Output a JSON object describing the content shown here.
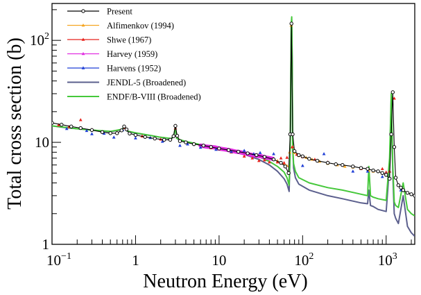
{
  "chart_data": {
    "type": "line",
    "xlabel": "Neutron Energy (eV)",
    "ylabel": "Total cross section (b)",
    "xscale": "log",
    "yscale": "log",
    "xlim": [
      0.1,
      2200
    ],
    "ylim": [
      1,
      230
    ],
    "grid": false,
    "legend_position": "top-left",
    "x_ticks": [
      {
        "value": 0.1,
        "base": "10",
        "exp": "−1"
      },
      {
        "value": 1,
        "label": "1"
      },
      {
        "value": 10,
        "label": "10"
      },
      {
        "value": 100,
        "base": "10",
        "exp": "2"
      },
      {
        "value": 1000,
        "base": "10",
        "exp": "3"
      }
    ],
    "y_ticks": [
      {
        "value": 1,
        "label": "1"
      },
      {
        "value": 10,
        "label": "10"
      },
      {
        "value": 100,
        "base": "10",
        "exp": "2"
      }
    ],
    "series": [
      {
        "name": "Present",
        "color": "#000000",
        "kind": "points-line",
        "marker": "circle",
        "x": [
          0.1,
          0.13,
          0.17,
          0.22,
          0.3,
          0.4,
          0.5,
          0.6,
          0.68,
          0.73,
          0.78,
          0.85,
          1.0,
          1.3,
          1.7,
          2.2,
          2.6,
          2.85,
          3.0,
          3.15,
          3.4,
          4.0,
          5.0,
          6.5,
          8.0,
          10,
          13,
          17,
          22,
          28,
          35,
          45,
          55,
          62,
          68,
          71,
          73.5,
          76,
          80,
          90,
          100,
          120,
          150,
          200,
          250,
          300,
          400,
          500,
          600,
          700,
          800,
          900,
          1000,
          1100,
          1150,
          1200,
          1250,
          1300,
          1400,
          1500,
          1600,
          1800,
          2000,
          2200
        ],
        "y": [
          15.5,
          14.9,
          14.3,
          13.8,
          13.2,
          12.6,
          12.3,
          12.3,
          13.1,
          14.3,
          13.4,
          12.2,
          11.8,
          11.3,
          10.9,
          10.6,
          10.6,
          11.5,
          14.5,
          11.6,
          10.3,
          10.0,
          9.6,
          9.3,
          9.0,
          8.7,
          8.4,
          8.1,
          7.8,
          7.5,
          7.2,
          6.8,
          6.3,
          5.8,
          5.0,
          12,
          146,
          12,
          8.2,
          7.5,
          7.3,
          6.9,
          6.6,
          6.3,
          6.1,
          6.0,
          5.8,
          5.6,
          5.5,
          5.3,
          5.2,
          5.0,
          4.8,
          4.4,
          12,
          31,
          9,
          4.5,
          3.8,
          3.6,
          3.4,
          3.2,
          3.1,
          3.0
        ]
      },
      {
        "name": "Alfimenkov (1994)",
        "color": "#f5a623",
        "kind": "points",
        "marker": "triangle",
        "x": [
          50,
          60,
          65,
          70,
          73,
          76,
          80,
          90,
          110,
          130,
          160,
          200,
          260,
          320,
          400,
          500,
          620,
          700
        ],
        "y": [
          6.6,
          6.2,
          5.9,
          8,
          140,
          9,
          7.9,
          7.4,
          7.1,
          6.8,
          6.5,
          6.2,
          6.0,
          5.8,
          5.7,
          5.5,
          5.3,
          5.2
        ]
      },
      {
        "name": "Shwe (1967)",
        "color": "#e8231c",
        "kind": "points",
        "marker": "triangle",
        "x": [
          0.12,
          0.16,
          0.22,
          0.3,
          0.4,
          0.6,
          0.75,
          1.2,
          2.0,
          3.0,
          5,
          8,
          10,
          14,
          20,
          25,
          30,
          35,
          40,
          45,
          50,
          55,
          60,
          65,
          75,
          85,
          100,
          140,
          200,
          300,
          500,
          700,
          900,
          1000,
          1100,
          1250
        ],
        "y": [
          14.8,
          14.2,
          16.6,
          13.3,
          12.6,
          12.5,
          13.9,
          11.5,
          10.7,
          13.8,
          9.7,
          8.8,
          8.6,
          8.0,
          7.3,
          7.0,
          6.6,
          6.7,
          6.4,
          6.8,
          6.4,
          7.0,
          6.3,
          7.1,
          9.0,
          7.6,
          7.2,
          6.8,
          6.4,
          6.0,
          5.5,
          5.3,
          5.5,
          5.1,
          5.2,
          27
        ]
      },
      {
        "name": "Harvey (1959)",
        "color": "#e12ee1",
        "kind": "dense",
        "marker": "triangle",
        "x": [
          6,
          7,
          8,
          9,
          10,
          12,
          14,
          16,
          18,
          20,
          22,
          25,
          28,
          32,
          36,
          40,
          44
        ],
        "y": [
          9.3,
          9.1,
          9.0,
          8.9,
          8.7,
          8.5,
          8.3,
          8.1,
          8.0,
          7.8,
          7.7,
          7.5,
          7.4,
          7.3,
          7.1,
          7.0,
          6.9
        ]
      },
      {
        "name": "Harvens (1952)",
        "color": "#1f3fd6",
        "kind": "points",
        "marker": "triangle",
        "x": [
          0.15,
          0.26,
          0.3,
          0.42,
          0.55,
          0.7,
          1.0,
          1.5,
          2.1,
          3.4,
          4.2,
          6.0,
          9.2,
          14,
          20,
          26,
          31,
          45,
          100,
          150,
          180,
          250,
          400,
          600,
          900,
          1000,
          1500
        ],
        "y": [
          13.6,
          13.0,
          12.1,
          12.2,
          11.2,
          13.2,
          11.0,
          11.1,
          10.2,
          9.3,
          9.6,
          8.9,
          8.5,
          8.1,
          8.3,
          7.7,
          7.9,
          7.7,
          5.9,
          6.6,
          7.7,
          6.1,
          5.2,
          5.2,
          4.6,
          4.9,
          3.4
        ]
      },
      {
        "name": "JENDL-5 (Broadened)",
        "color": "#5b5f8d",
        "kind": "line",
        "marker": "none",
        "x": [
          0.1,
          0.15,
          0.2,
          0.3,
          0.5,
          0.68,
          0.74,
          0.8,
          1.0,
          1.5,
          2.0,
          2.7,
          2.9,
          3.0,
          3.1,
          3.3,
          4.0,
          6,
          10,
          20,
          30,
          40,
          50,
          60,
          65,
          69,
          71,
          73,
          74,
          75,
          76,
          78,
          82,
          90,
          120,
          200,
          300,
          500,
          600,
          620,
          650,
          700,
          800,
          1000,
          1100,
          1150,
          1200,
          1250,
          1300,
          1400,
          1600,
          1800,
          2000,
          2200
        ],
        "y": [
          14.5,
          13.9,
          13.6,
          13.2,
          12.7,
          13.3,
          13.8,
          12.8,
          12.3,
          11.7,
          11.2,
          10.8,
          12,
          14,
          11,
          10.6,
          10.2,
          9.4,
          8.6,
          7.6,
          6.8,
          6.0,
          5.2,
          4.4,
          3.9,
          3.3,
          8,
          140,
          160,
          60,
          9,
          5.6,
          4.5,
          3.9,
          3.4,
          3.0,
          2.8,
          2.55,
          2.5,
          3.4,
          2.4,
          2.35,
          2.2,
          2.1,
          6,
          28,
          5,
          2.0,
          1.8,
          1.6,
          3,
          1.5,
          1.3,
          1.2
        ]
      },
      {
        "name": "ENDF/B-VIII (Broadened)",
        "color": "#45c83a",
        "kind": "line",
        "marker": "none",
        "x": [
          0.1,
          0.15,
          0.2,
          0.3,
          0.5,
          0.68,
          0.74,
          0.8,
          1.0,
          1.5,
          2.0,
          2.7,
          2.9,
          3.0,
          3.1,
          3.3,
          4.0,
          6,
          10,
          20,
          30,
          40,
          50,
          60,
          65,
          69,
          71,
          73,
          74,
          75,
          76,
          78,
          82,
          90,
          120,
          200,
          300,
          500,
          600,
          620,
          650,
          700,
          800,
          1000,
          1100,
          1150,
          1200,
          1250,
          1300,
          1400,
          1600,
          1800,
          2000,
          2200
        ],
        "y": [
          14.5,
          14.0,
          13.6,
          13.2,
          12.8,
          13.4,
          14.0,
          12.9,
          12.4,
          11.7,
          11.2,
          10.9,
          12,
          14.5,
          11,
          10.7,
          10.2,
          9.5,
          8.8,
          7.9,
          7.2,
          6.5,
          5.8,
          5.1,
          4.5,
          3.8,
          9,
          146,
          170,
          62,
          9,
          6.2,
          5.2,
          4.5,
          4.0,
          3.6,
          3.4,
          3.1,
          3.0,
          5.8,
          3.0,
          2.9,
          2.8,
          2.7,
          7,
          30,
          6,
          2.6,
          2.4,
          2.3,
          4,
          2.2,
          2.0,
          1.9
        ]
      }
    ]
  }
}
